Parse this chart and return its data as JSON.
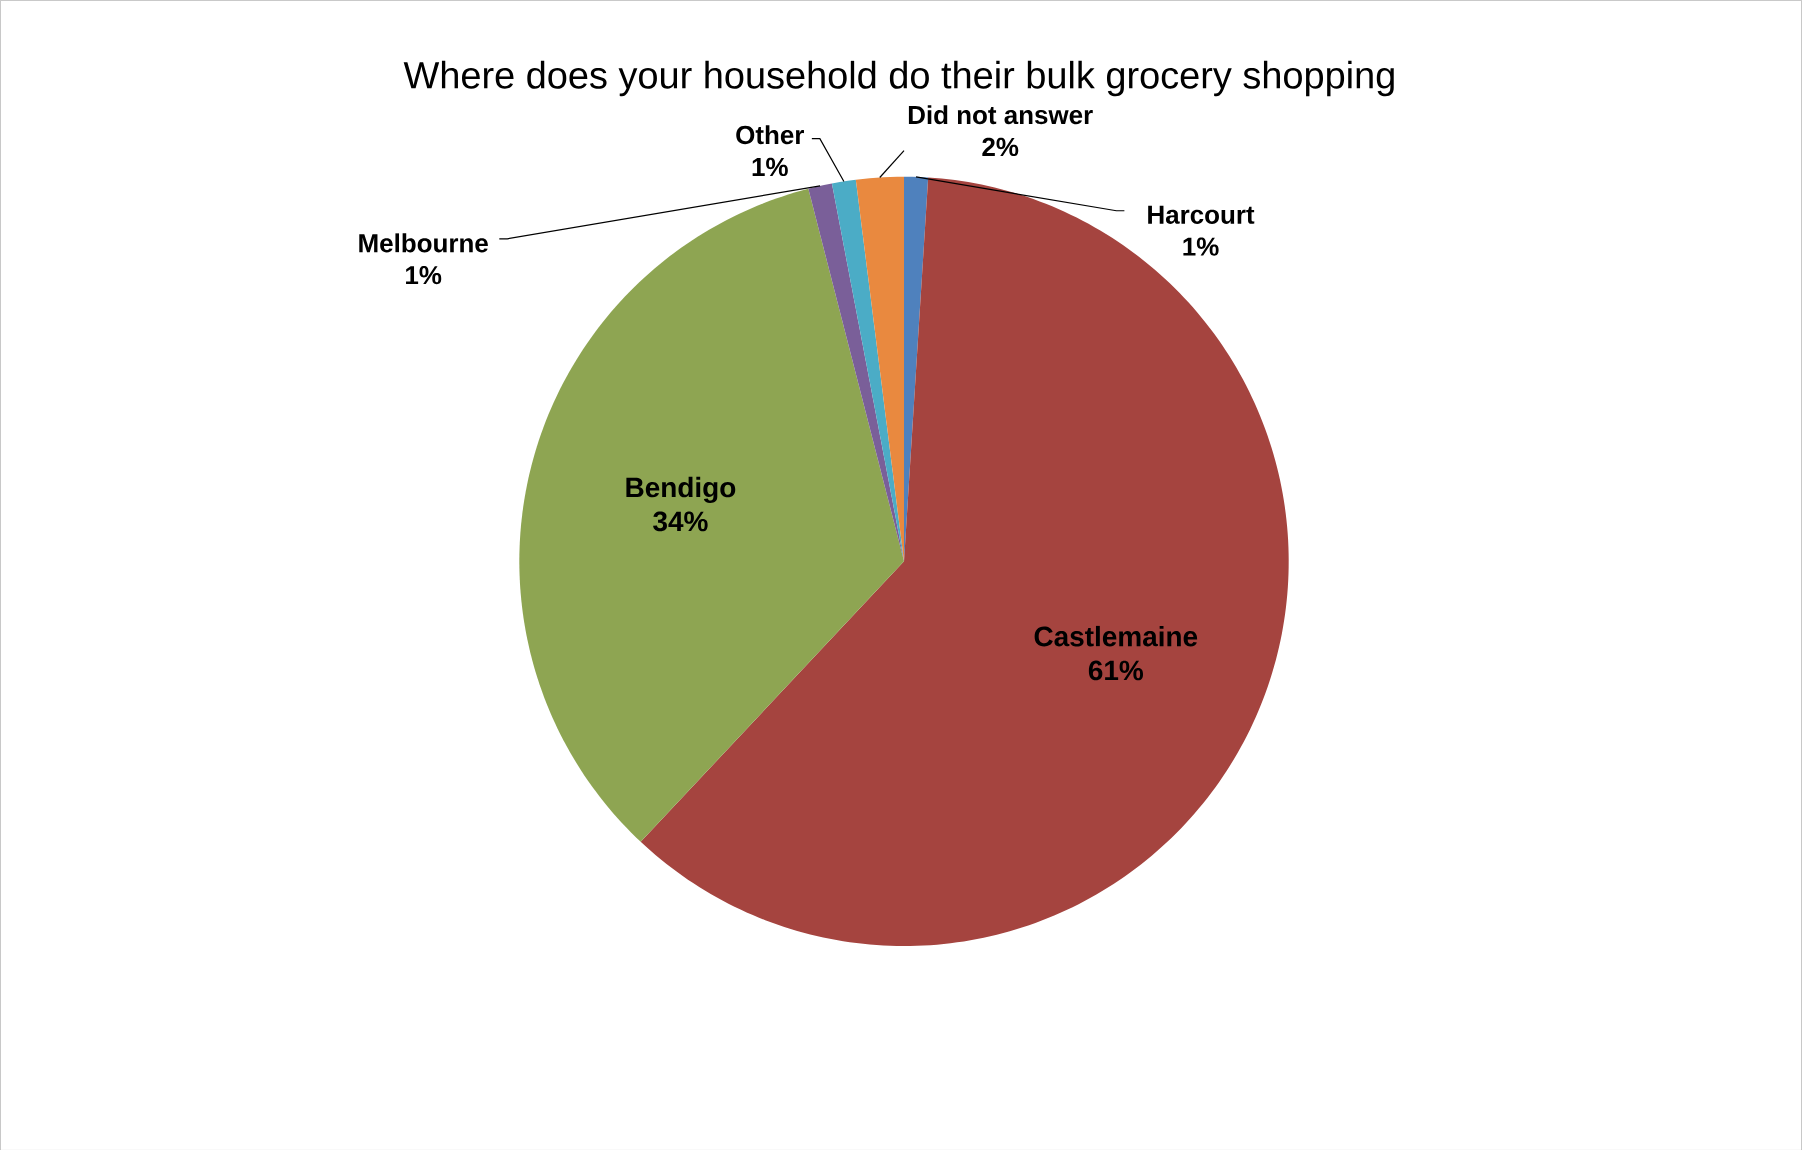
{
  "chart_data": {
    "type": "pie",
    "title": "Where does your household do their bulk grocery shopping",
    "categories": [
      "Harcourt",
      "Castlemaine",
      "Bendigo",
      "Melbourne",
      "Other",
      "Did not answer"
    ],
    "values": [
      1,
      61,
      34,
      1,
      1,
      2
    ],
    "value_labels": [
      "1%",
      "61%",
      "34%",
      "1%",
      "1%",
      "2%"
    ],
    "colors": [
      "#4f81bd",
      "#a5443f",
      "#8ea552",
      "#7a5f99",
      "#4bacc6",
      "#e9893f"
    ]
  }
}
